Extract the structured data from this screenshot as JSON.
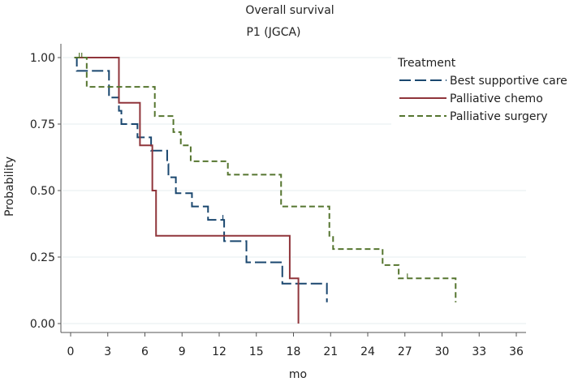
{
  "chart_data": {
    "type": "line",
    "subtype": "kaplan-meier step",
    "title": "Overall survival",
    "subtitle": "P1 (JGCA)",
    "xlabel": "mo",
    "ylabel": "Probability",
    "xlim": [
      0,
      36
    ],
    "ylim": [
      0,
      1
    ],
    "xticks": [
      0,
      3,
      6,
      9,
      12,
      15,
      18,
      21,
      24,
      27,
      30,
      33,
      36
    ],
    "yticks": [
      0,
      0.25,
      0.5,
      0.75,
      1
    ],
    "ytick_labels": [
      "0.00",
      "0.25",
      "0.50",
      "0.75",
      "1.00"
    ],
    "grid": true,
    "legend": {
      "title": "Treatment",
      "placement": "top-right"
    },
    "series": [
      {
        "name": "Best supportive care",
        "color": "#1a476f",
        "dash": "long-dash",
        "steps": [
          [
            0.3,
            1.0
          ],
          [
            0.5,
            0.95
          ],
          [
            3.1,
            0.85
          ],
          [
            3.9,
            0.8
          ],
          [
            4.1,
            0.75
          ],
          [
            5.4,
            0.7
          ],
          [
            6.5,
            0.65
          ],
          [
            7.8,
            0.6
          ],
          [
            7.9,
            0.55
          ],
          [
            8.5,
            0.49
          ],
          [
            9.8,
            0.44
          ],
          [
            11.1,
            0.39
          ],
          [
            12.4,
            0.31
          ],
          [
            14.2,
            0.23
          ],
          [
            17.1,
            0.15
          ],
          [
            20.7,
            0.08
          ]
        ],
        "end": 20.7,
        "censored": [
          [
            12.3,
            0.39
          ]
        ]
      },
      {
        "name": "Palliative chemo",
        "color": "#90353b",
        "dash": "solid",
        "steps": [
          [
            0.3,
            1.0
          ],
          [
            3.9,
            0.83
          ],
          [
            5.6,
            0.67
          ],
          [
            6.6,
            0.5
          ],
          [
            6.9,
            0.33
          ],
          [
            17.7,
            0.17
          ],
          [
            18.4,
            0.0
          ]
        ],
        "end": 18.4,
        "censored": []
      },
      {
        "name": "Palliative surgery",
        "color": "#55752f",
        "dash": "short-dash",
        "steps": [
          [
            0.3,
            1.0
          ],
          [
            1.3,
            0.89
          ],
          [
            6.8,
            0.78
          ],
          [
            8.3,
            0.72
          ],
          [
            8.9,
            0.67
          ],
          [
            9.7,
            0.61
          ],
          [
            12.7,
            0.56
          ],
          [
            17.0,
            0.44
          ],
          [
            20.9,
            0.33
          ],
          [
            21.2,
            0.28
          ],
          [
            25.2,
            0.22
          ],
          [
            26.5,
            0.17
          ],
          [
            31.1,
            0.08
          ]
        ],
        "end": 31.1,
        "censored": [
          [
            0.7,
            1.0
          ],
          [
            0.9,
            1.0
          ],
          [
            27.2,
            0.17
          ]
        ]
      }
    ]
  }
}
